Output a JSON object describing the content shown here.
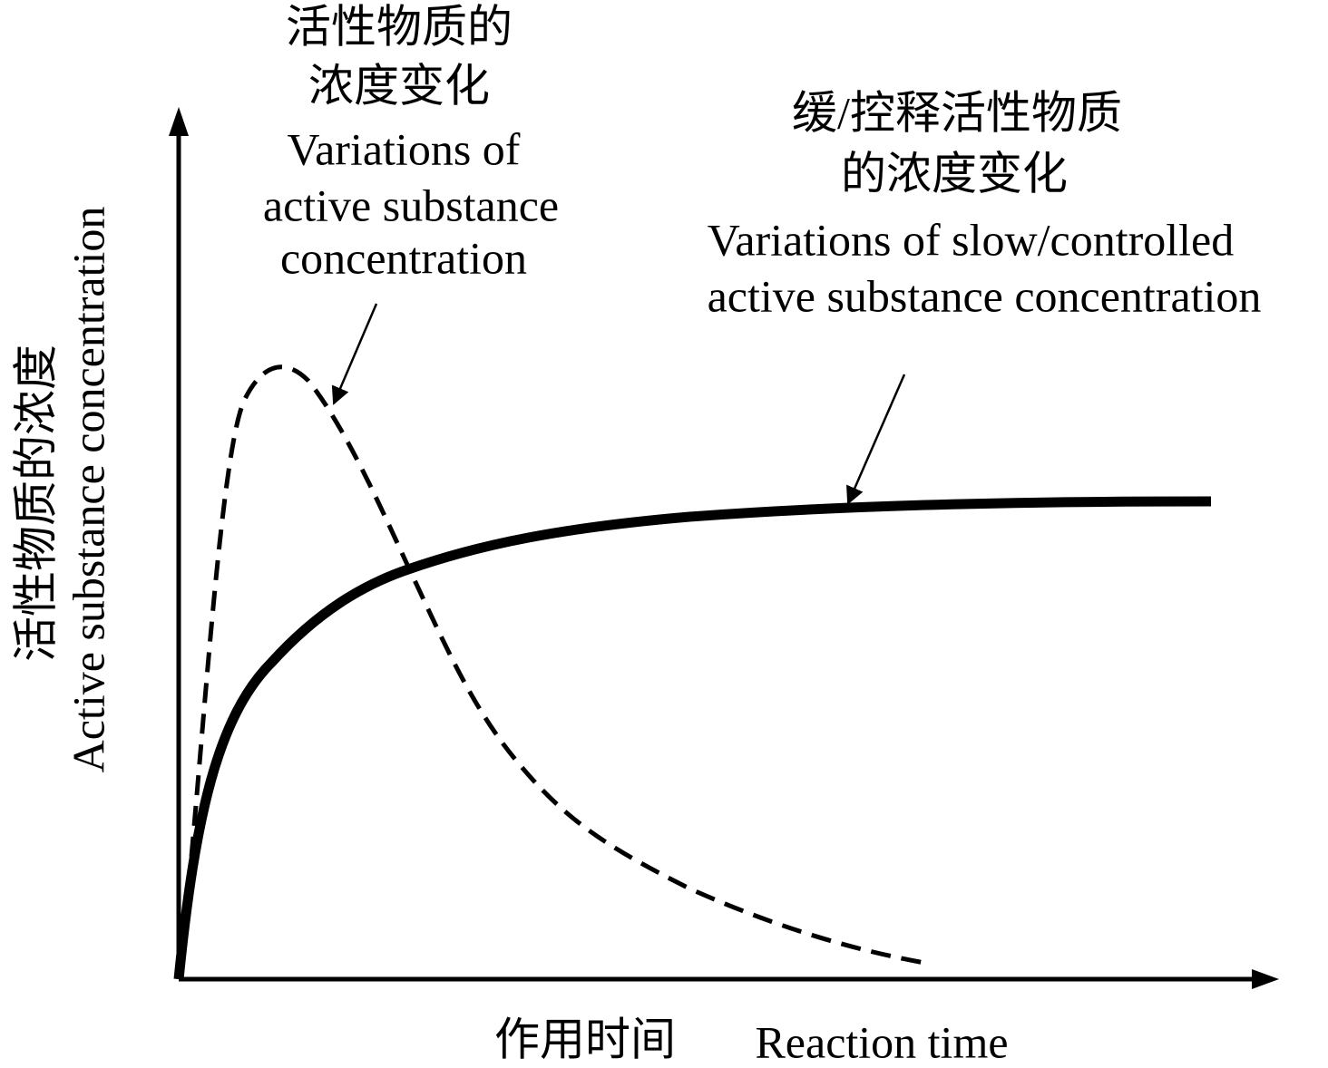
{
  "annotation_active": {
    "zh": [
      "活性物质的",
      "浓度变化"
    ],
    "en": [
      "Variations of",
      "active substance",
      "concentration"
    ]
  },
  "annotation_controlled": {
    "zh": [
      "缓/控释活性物质",
      "的浓度变化"
    ],
    "en": [
      "Variations of slow/controlled",
      "active substance concentration"
    ]
  },
  "y_axis_label": {
    "zh": "活性物质的浓度",
    "en": "Active substance concentration"
  },
  "x_axis_label": {
    "zh": "作用时间",
    "en": "Reaction time"
  }
}
